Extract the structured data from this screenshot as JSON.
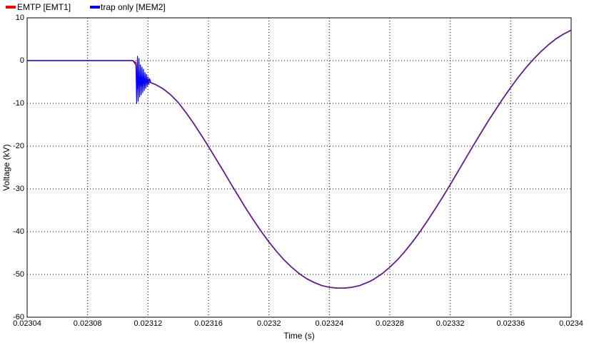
{
  "chart_data": {
    "type": "line",
    "title": "",
    "xlabel": "Time (s)",
    "ylabel": "Voltage (kV)",
    "xlim": [
      0.02304,
      0.0234
    ],
    "ylim": [
      -60,
      10
    ],
    "xticks": [
      "0.02304",
      "0.02308",
      "0.02312",
      "0.02316",
      "0.0232",
      "0.02324",
      "0.02328",
      "0.02332",
      "0.02336",
      "0.0234"
    ],
    "yticks": [
      "10",
      "0",
      "-10",
      "-20",
      "-30",
      "-40",
      "-50",
      "-60"
    ],
    "grid": true,
    "legend_position": "top-left",
    "series": [
      {
        "name": "EMTP [EMT1]",
        "color": "#ff0000",
        "x": [
          0.02304,
          0.02311,
          0.023112,
          0.0231125,
          0.023113,
          0.0231135,
          0.023114,
          0.0231145,
          0.023115,
          0.0231155,
          0.023116,
          0.0231165,
          0.023117,
          0.0231175,
          0.023118,
          0.0231185,
          0.023119,
          0.02312,
          0.023125,
          0.02313,
          0.023135,
          0.02314,
          0.023145,
          0.02315,
          0.023155,
          0.02316,
          0.023165,
          0.02317,
          0.023175,
          0.02318,
          0.023185,
          0.02319,
          0.023195,
          0.0232,
          0.023205,
          0.02321,
          0.023215,
          0.02322,
          0.023225,
          0.02323,
          0.023235,
          0.02324,
          0.023245,
          0.02325,
          0.023255,
          0.02326,
          0.023265,
          0.023267,
          0.02327,
          0.023275,
          0.02328,
          0.023285,
          0.02329,
          0.023295,
          0.0233,
          0.023305,
          0.02331,
          0.023315,
          0.02332,
          0.023325,
          0.02333,
          0.023335,
          0.02334,
          0.023345,
          0.02335,
          0.023355,
          0.02336,
          0.023365,
          0.02337,
          0.023375,
          0.02338,
          0.023385,
          0.02339,
          0.023395,
          0.0234
        ],
        "y": [
          0,
          0,
          -0.5,
          -4.5,
          -6.5,
          -4.8,
          -3.6,
          -6.2,
          -4.5,
          -3.9,
          -5.8,
          -4.6,
          -4.2,
          -5.5,
          -4.6,
          -4.5,
          -5.2,
          -4.9,
          -5.6,
          -6.6,
          -8.0,
          -9.8,
          -12.1,
          -14.6,
          -17.3,
          -20.1,
          -23.0,
          -25.9,
          -28.9,
          -31.8,
          -34.7,
          -37.4,
          -40.0,
          -42.4,
          -44.6,
          -46.6,
          -48.3,
          -49.8,
          -51.0,
          -51.9,
          -52.6,
          -53.0,
          -53.2,
          -53.2,
          -53.0,
          -52.6,
          -51.9,
          -51.6,
          -51.0,
          -49.8,
          -48.3,
          -46.6,
          -44.6,
          -42.4,
          -40.0,
          -37.4,
          -34.7,
          -31.9,
          -29.0,
          -26.0,
          -23.0,
          -20.0,
          -17.1,
          -14.2,
          -11.5,
          -8.8,
          -6.3,
          -3.9,
          -1.7,
          0.3,
          2.1,
          3.7,
          5.1,
          6.2,
          7.1
        ]
      },
      {
        "name": "trap only [MEM2]",
        "color": "#0000ff",
        "x": [
          0.02304,
          0.02311,
          0.023112,
          0.0231125,
          0.023113,
          0.0231135,
          0.023114,
          0.0231145,
          0.023115,
          0.0231155,
          0.023116,
          0.0231165,
          0.023117,
          0.0231175,
          0.023118,
          0.0231185,
          0.023119,
          0.0231195,
          0.02312,
          0.0231205,
          0.023121,
          0.023122,
          0.023125,
          0.02313,
          0.023135,
          0.02314,
          0.023145,
          0.02315,
          0.023155,
          0.02316,
          0.023165,
          0.02317,
          0.023175,
          0.02318,
          0.023185,
          0.02319,
          0.023195,
          0.0232,
          0.023205,
          0.02321,
          0.023215,
          0.02322,
          0.023225,
          0.02323,
          0.023235,
          0.02324,
          0.023245,
          0.02325,
          0.023255,
          0.02326,
          0.023265,
          0.023267,
          0.02327,
          0.023275,
          0.02328,
          0.023285,
          0.02329,
          0.023295,
          0.0233,
          0.023305,
          0.02331,
          0.023315,
          0.02332,
          0.023325,
          0.02333,
          0.023335,
          0.02334,
          0.023345,
          0.02335,
          0.023355,
          0.02336,
          0.023365,
          0.02337,
          0.023375,
          0.02338,
          0.023385,
          0.02339,
          0.023395,
          0.0234
        ],
        "y": [
          0,
          0,
          -1,
          -10,
          1,
          -9.5,
          0.5,
          -8.5,
          -1,
          -8,
          -1.5,
          -7.5,
          -2,
          -7,
          -2.8,
          -6.5,
          -3.2,
          -6,
          -3.8,
          -5.6,
          -4.2,
          -5.2,
          -5.6,
          -6.6,
          -8.0,
          -9.8,
          -12.1,
          -14.6,
          -17.3,
          -20.1,
          -23.0,
          -25.9,
          -28.9,
          -31.8,
          -34.7,
          -37.4,
          -40.0,
          -42.4,
          -44.6,
          -46.6,
          -48.3,
          -49.8,
          -51.0,
          -51.9,
          -52.6,
          -53.0,
          -53.2,
          -53.2,
          -53.0,
          -52.6,
          -51.9,
          -51.6,
          -51.0,
          -49.8,
          -48.3,
          -46.6,
          -44.6,
          -42.4,
          -40.0,
          -37.4,
          -34.7,
          -31.9,
          -29.0,
          -26.0,
          -23.0,
          -20.0,
          -17.1,
          -14.2,
          -11.5,
          -8.8,
          -6.3,
          -3.9,
          -1.7,
          0.3,
          2.1,
          3.7,
          5.1,
          6.2,
          7.1
        ]
      }
    ]
  }
}
